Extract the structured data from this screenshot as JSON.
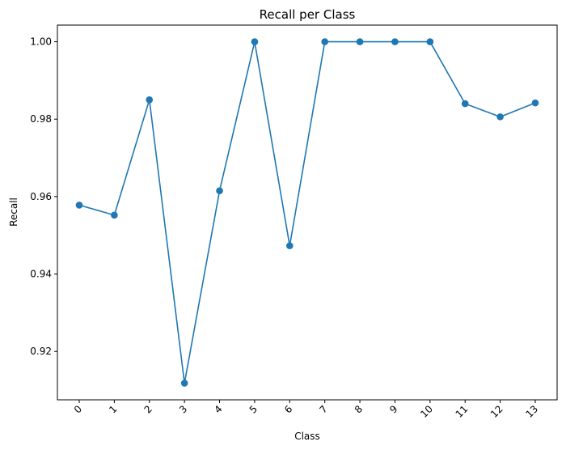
{
  "chart_data": {
    "type": "line",
    "title": "Recall per Class",
    "xlabel": "Class",
    "ylabel": "Recall",
    "x": [
      "0",
      "1",
      "2",
      "3",
      "4",
      "5",
      "6",
      "7",
      "8",
      "9",
      "10",
      "11",
      "12",
      "13"
    ],
    "series": [
      {
        "values": [
          0.9578,
          0.9552,
          0.985,
          0.9118,
          0.9615,
          1.0,
          0.9473,
          1.0,
          1.0,
          1.0,
          1.0,
          0.984,
          0.9806,
          0.9842
        ],
        "color": "#1f77b4",
        "marker": "circle"
      }
    ],
    "yticks": [
      "0.92",
      "0.94",
      "0.96",
      "0.98",
      "1.00"
    ],
    "ylim": [
      0.9075,
      1.0043
    ],
    "grid": false,
    "legend": "none"
  }
}
